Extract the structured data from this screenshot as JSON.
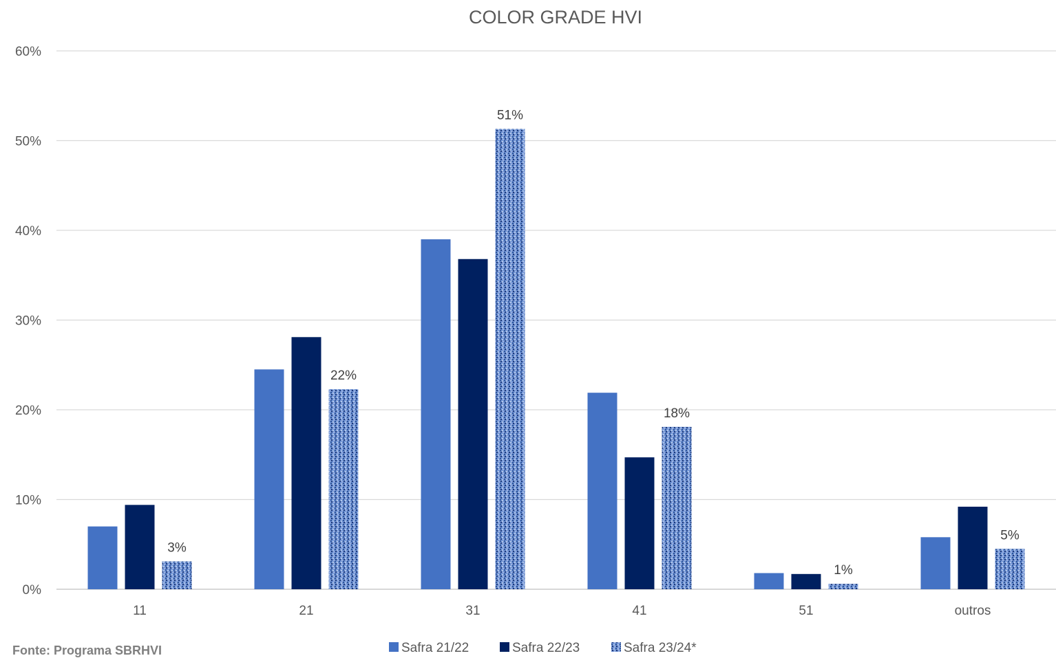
{
  "chart_data": {
    "type": "bar",
    "title": "COLOR GRADE HVI",
    "xlabel": "",
    "ylabel": "",
    "categories": [
      "11",
      "21",
      "31",
      "41",
      "51",
      "outros"
    ],
    "ylim": [
      0,
      60
    ],
    "yticks": [
      0,
      10,
      20,
      30,
      40,
      50,
      60
    ],
    "ytick_labels": [
      "0%",
      "10%",
      "20%",
      "30%",
      "40%",
      "50%",
      "60%"
    ],
    "grid": true,
    "legend_position": "bottom",
    "series": [
      {
        "name": "Safra 21/22",
        "color": "#4472c4",
        "pattern": "solid",
        "values": [
          7.0,
          24.5,
          39.0,
          21.9,
          1.8,
          5.8
        ],
        "labels": []
      },
      {
        "name": "Safra 22/23",
        "color": "#002060",
        "pattern": "solid",
        "values": [
          9.4,
          28.1,
          36.8,
          14.7,
          1.7,
          9.2
        ],
        "labels": []
      },
      {
        "name": "Safra 23/24*",
        "color": "#4472c4",
        "pattern": "texture",
        "values": [
          3.1,
          22.3,
          51.3,
          18.1,
          0.6,
          4.5
        ],
        "labels": [
          "3%",
          "22%",
          "51%",
          "18%",
          "1%",
          "5%"
        ]
      }
    ]
  },
  "source_note": "Fonte: Programa SBRHVI"
}
